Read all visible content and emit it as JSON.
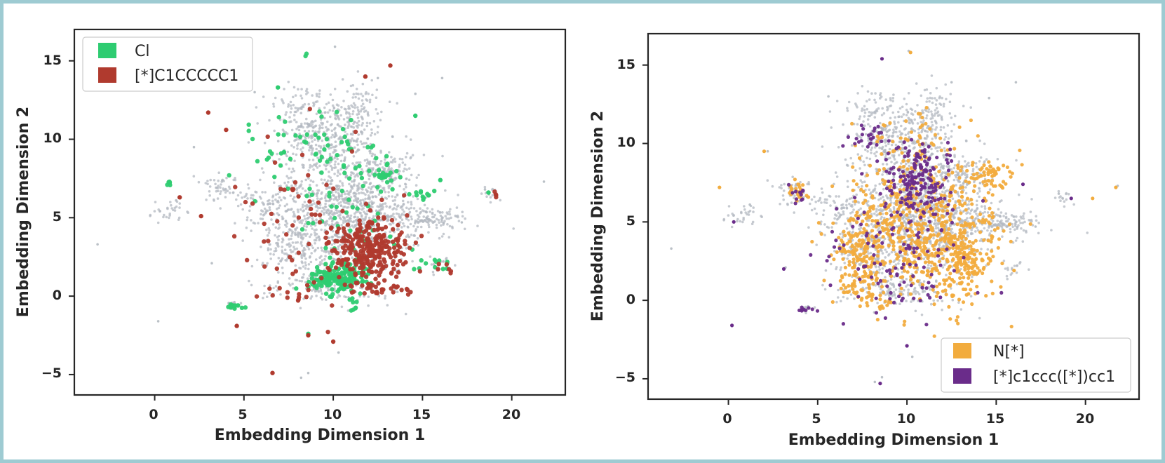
{
  "colors": {
    "background_points": "#b4bac1",
    "frame": "#9ecbd2",
    "axes": "#262626"
  },
  "chart_data": [
    {
      "type": "scatter",
      "title": "",
      "xlabel": "Embedding Dimension 1",
      "ylabel": "Embedding Dimension 2",
      "xlim": [
        -4.5,
        23
      ],
      "ylim": [
        -6.3,
        17
      ],
      "xticks": [
        0,
        5,
        10,
        15,
        20
      ],
      "yticks": [
        -5,
        0,
        5,
        10,
        15
      ],
      "xtick_labels": [
        "0",
        "5",
        "10",
        "15",
        "20"
      ],
      "ytick_labels": [
        "−5",
        "0",
        "5",
        "10",
        "15"
      ],
      "grid": false,
      "legend_position": "top-left",
      "background_series": "all embedded fragments (grey)",
      "series": [
        {
          "name": "Cl",
          "color": "#2ecc71",
          "clusters": [
            {
              "cx": 10.3,
              "cy": 1.2,
              "sx": 0.9,
              "sy": 0.5,
              "n": 170
            },
            {
              "cx": 12.9,
              "cy": 7.8,
              "sx": 0.4,
              "sy": 0.25,
              "n": 22
            },
            {
              "cx": 4.5,
              "cy": -0.6,
              "sx": 0.3,
              "sy": 0.1,
              "n": 14
            },
            {
              "cx": 15.7,
              "cy": 2.1,
              "sx": 0.5,
              "sy": 0.2,
              "n": 12
            },
            {
              "cx": 15.0,
              "cy": 6.5,
              "sx": 0.3,
              "sy": 0.2,
              "n": 12
            },
            {
              "cx": 0.8,
              "cy": 7.2,
              "sx": 0.1,
              "sy": 0.1,
              "n": 5
            },
            {
              "cx": 8.9,
              "cy": 10.1,
              "sx": 1.6,
              "sy": 1.0,
              "n": 40
            },
            {
              "cx": 10.5,
              "cy": 6.0,
              "sx": 2.0,
              "sy": 1.7,
              "n": 55
            },
            {
              "cx": 7.0,
              "cy": 9.2,
              "sx": 0.3,
              "sy": 0.2,
              "n": 6
            },
            {
              "cx": 8.5,
              "cy": 15.4,
              "sx": 0.05,
              "sy": 0.05,
              "n": 2
            },
            {
              "cx": 10.9,
              "cy": -0.4,
              "sx": 0.2,
              "sy": 0.4,
              "n": 8
            }
          ],
          "points": [
            [
              6.9,
              13.3
            ],
            [
              14.6,
              11.5
            ],
            [
              18.7,
              6.6
            ],
            [
              16.0,
              7.4
            ],
            [
              8.6,
              -2.4
            ]
          ]
        },
        {
          "name": "[*]C1CCCCC1",
          "color": "#b03a2e",
          "clusters": [
            {
              "cx": 12.0,
              "cy": 2.9,
              "sx": 1.0,
              "sy": 0.9,
              "n": 260
            },
            {
              "cx": 12.5,
              "cy": 0.5,
              "sx": 0.9,
              "sy": 0.2,
              "n": 30
            },
            {
              "cx": 9.3,
              "cy": 4.5,
              "sx": 2.2,
              "sy": 2.5,
              "n": 80
            },
            {
              "cx": 7.9,
              "cy": -0.1,
              "sx": 0.8,
              "sy": 0.3,
              "n": 12
            },
            {
              "cx": 19.1,
              "cy": 6.4,
              "sx": 0.1,
              "sy": 0.1,
              "n": 4
            },
            {
              "cx": 16.4,
              "cy": 1.8,
              "sx": 0.3,
              "sy": 0.15,
              "n": 6
            }
          ],
          "points": [
            [
              3.0,
              11.7
            ],
            [
              4.0,
              10.6
            ],
            [
              13.2,
              14.7
            ],
            [
              11.8,
              14.0
            ],
            [
              6.6,
              -4.9
            ],
            [
              4.6,
              -1.9
            ],
            [
              2.6,
              5.1
            ],
            [
              1.4,
              6.3
            ],
            [
              10.0,
              -2.9
            ],
            [
              8.6,
              -2.5
            ]
          ]
        }
      ]
    },
    {
      "type": "scatter",
      "title": "",
      "xlabel": "Embedding Dimension 1",
      "ylabel": "Embedding Dimension 2",
      "xlim": [
        -4.5,
        23
      ],
      "ylim": [
        -6.3,
        17
      ],
      "xticks": [
        0,
        5,
        10,
        15,
        20
      ],
      "yticks": [
        -5,
        0,
        5,
        10,
        15
      ],
      "xtick_labels": [
        "0",
        "5",
        "10",
        "15",
        "20"
      ],
      "ytick_labels": [
        "−5",
        "0",
        "5",
        "10",
        "15"
      ],
      "grid": false,
      "legend_position": "bottom-right",
      "background_series": "all embedded fragments (grey)",
      "series": [
        {
          "name": "N[*]",
          "color": "#f2ac3e",
          "clusters": [
            {
              "cx": 11.0,
              "cy": 4.5,
              "sx": 2.2,
              "sy": 2.3,
              "n": 600
            },
            {
              "cx": 7.3,
              "cy": 3.0,
              "sx": 0.7,
              "sy": 1.2,
              "n": 140
            },
            {
              "cx": 13.0,
              "cy": 2.5,
              "sx": 0.9,
              "sy": 1.0,
              "n": 140
            },
            {
              "cx": 14.8,
              "cy": 8.0,
              "sx": 0.7,
              "sy": 0.5,
              "n": 60
            },
            {
              "cx": 3.9,
              "cy": 6.9,
              "sx": 0.3,
              "sy": 0.3,
              "n": 25
            },
            {
              "cx": 10.0,
              "cy": 10.2,
              "sx": 1.5,
              "sy": 1.0,
              "n": 50
            },
            {
              "cx": 8.0,
              "cy": 0.5,
              "sx": 0.8,
              "sy": 0.5,
              "n": 40
            }
          ],
          "points": [
            [
              10.2,
              15.8
            ],
            [
              21.7,
              7.2
            ],
            [
              20.4,
              6.5
            ],
            [
              2.0,
              9.5
            ],
            [
              16.0,
              1.9
            ],
            [
              -0.5,
              7.2
            ]
          ]
        },
        {
          "name": "[*]c1ccc([*])cc1",
          "color": "#6a2c8a",
          "clusters": [
            {
              "cx": 10.5,
              "cy": 7.8,
              "sx": 1.0,
              "sy": 1.3,
              "n": 180
            },
            {
              "cx": 9.5,
              "cy": 2.5,
              "sx": 2.0,
              "sy": 2.0,
              "n": 110
            },
            {
              "cx": 8.0,
              "cy": 10.5,
              "sx": 0.6,
              "sy": 0.4,
              "n": 25
            },
            {
              "cx": 4.3,
              "cy": -0.6,
              "sx": 0.3,
              "sy": 0.1,
              "n": 10
            },
            {
              "cx": 3.8,
              "cy": 6.8,
              "sx": 0.3,
              "sy": 0.4,
              "n": 12
            }
          ],
          "points": [
            [
              0.3,
              5.0
            ],
            [
              0.2,
              -1.6
            ],
            [
              8.6,
              15.4
            ],
            [
              8.5,
              -5.3
            ],
            [
              10.0,
              -2.9
            ],
            [
              19.2,
              6.5
            ],
            [
              16.5,
              7.4
            ],
            [
              3.1,
              2.0
            ]
          ]
        }
      ]
    }
  ]
}
